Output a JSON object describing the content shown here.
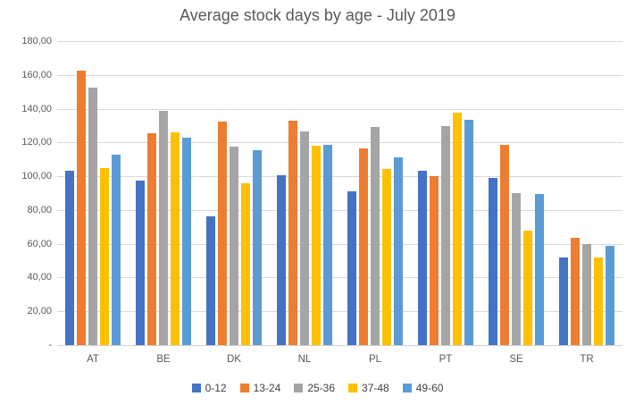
{
  "chart_data": {
    "type": "bar",
    "title": "Average stock days by age - July 2019",
    "xlabel": "",
    "ylabel": "",
    "categories": [
      "AT",
      "BE",
      "DK",
      "NL",
      "PL",
      "PT",
      "SE",
      "TR"
    ],
    "series": [
      {
        "name": "0-12",
        "color": "#4472C4",
        "values": [
          103.0,
          97.5,
          76.0,
          100.5,
          91.0,
          103.5,
          99.0,
          52.0
        ]
      },
      {
        "name": "13-24",
        "color": "#ED7D31",
        "values": [
          162.5,
          125.5,
          132.5,
          133.0,
          116.5,
          100.0,
          118.5,
          63.5
        ]
      },
      {
        "name": "25-36",
        "color": "#A5A5A5",
        "values": [
          152.5,
          138.5,
          117.5,
          126.5,
          129.0,
          129.5,
          90.0,
          60.0
        ]
      },
      {
        "name": "37-48",
        "color": "#FFC000",
        "values": [
          105.0,
          126.0,
          96.0,
          118.0,
          104.5,
          137.5,
          68.0,
          52.0
        ]
      },
      {
        "name": "49-60",
        "color": "#5B9BD5",
        "values": [
          113.0,
          123.0,
          115.5,
          118.5,
          111.0,
          133.5,
          89.5,
          58.5
        ]
      }
    ],
    "ylim": [
      0,
      180
    ],
    "y_ticks": [
      {
        "value": 0,
        "label": "-"
      },
      {
        "value": 20,
        "label": "20,00"
      },
      {
        "value": 40,
        "label": "40,00"
      },
      {
        "value": 60,
        "label": "60,00"
      },
      {
        "value": 80,
        "label": "80,00"
      },
      {
        "value": 100,
        "label": "100,00"
      },
      {
        "value": 120,
        "label": "120,00"
      },
      {
        "value": 140,
        "label": "140,00"
      },
      {
        "value": 160,
        "label": "160,00"
      },
      {
        "value": 180,
        "label": "180,00"
      }
    ],
    "grid": true,
    "legend_position": "bottom",
    "colors": {
      "title_text": "#595959",
      "axis_text": "#595959",
      "legend_text": "#404040",
      "gridline": "#d9d9d9",
      "background": "#ffffff"
    }
  }
}
